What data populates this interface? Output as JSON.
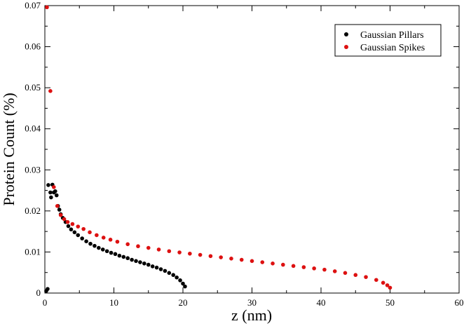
{
  "chart_data": {
    "type": "scatter",
    "title": "",
    "xlabel": "z (nm)",
    "ylabel": "Protein Count (%)",
    "xlim": [
      0,
      60
    ],
    "ylim": [
      0,
      0.07
    ],
    "xticks": [
      0,
      10,
      20,
      30,
      40,
      50,
      60
    ],
    "yticks": [
      0,
      0.01,
      0.02,
      0.03,
      0.04,
      0.05,
      0.06,
      0.07
    ],
    "xtick_labels": [
      "0",
      "10",
      "20",
      "30",
      "40",
      "50",
      "60"
    ],
    "ytick_labels": [
      "0",
      "0.01",
      "0.02",
      "0.03",
      "0.04",
      "0.05",
      "0.06",
      "0.07"
    ],
    "grid": false,
    "legend": "top-right",
    "series": [
      {
        "name": "Gaussian Pillars",
        "color": "#000000",
        "points": [
          [
            0.2,
            0.0005
          ],
          [
            0.4,
            0.001
          ],
          [
            0.5,
            0.0263
          ],
          [
            0.8,
            0.0245
          ],
          [
            0.9,
            0.0233
          ],
          [
            1.1,
            0.0264
          ],
          [
            1.3,
            0.0245
          ],
          [
            1.5,
            0.0248
          ],
          [
            1.7,
            0.0238
          ],
          [
            1.9,
            0.0212
          ],
          [
            2.1,
            0.0203
          ],
          [
            2.3,
            0.0192
          ],
          [
            2.6,
            0.0183
          ],
          [
            3.0,
            0.0173
          ],
          [
            3.4,
            0.0163
          ],
          [
            3.8,
            0.0155
          ],
          [
            4.3,
            0.0148
          ],
          [
            4.8,
            0.0141
          ],
          [
            5.4,
            0.0133
          ],
          [
            6.0,
            0.0126
          ],
          [
            6.6,
            0.012
          ],
          [
            7.2,
            0.0115
          ],
          [
            7.8,
            0.011
          ],
          [
            8.4,
            0.0106
          ],
          [
            9.0,
            0.0102
          ],
          [
            9.6,
            0.0098
          ],
          [
            10.2,
            0.0095
          ],
          [
            10.8,
            0.0091
          ],
          [
            11.4,
            0.0088
          ],
          [
            12.0,
            0.0085
          ],
          [
            12.6,
            0.0081
          ],
          [
            13.2,
            0.0078
          ],
          [
            13.8,
            0.0075
          ],
          [
            14.4,
            0.0072
          ],
          [
            15.0,
            0.0069
          ],
          [
            15.6,
            0.0065
          ],
          [
            16.2,
            0.0062
          ],
          [
            16.8,
            0.0058
          ],
          [
            17.4,
            0.0054
          ],
          [
            18.0,
            0.0049
          ],
          [
            18.6,
            0.0044
          ],
          [
            19.1,
            0.0038
          ],
          [
            19.6,
            0.0031
          ],
          [
            20.0,
            0.0023
          ],
          [
            20.3,
            0.0016
          ]
        ]
      },
      {
        "name": "Gaussian Spikes",
        "color": "#dd1111",
        "points": [
          [
            0.3,
            0.0696
          ],
          [
            0.8,
            0.0492
          ],
          [
            1.3,
            0.0258
          ],
          [
            1.8,
            0.0212
          ],
          [
            2.3,
            0.019
          ],
          [
            2.8,
            0.018
          ],
          [
            3.3,
            0.0173
          ],
          [
            4.0,
            0.0168
          ],
          [
            4.8,
            0.0162
          ],
          [
            5.6,
            0.0156
          ],
          [
            6.5,
            0.0148
          ],
          [
            7.5,
            0.0141
          ],
          [
            8.5,
            0.0135
          ],
          [
            9.5,
            0.013
          ],
          [
            10.5,
            0.0125
          ],
          [
            12.0,
            0.0119
          ],
          [
            13.5,
            0.0114
          ],
          [
            15.0,
            0.011
          ],
          [
            16.5,
            0.0106
          ],
          [
            18.0,
            0.0102
          ],
          [
            19.5,
            0.0099
          ],
          [
            21.0,
            0.0096
          ],
          [
            22.5,
            0.0093
          ],
          [
            24.0,
            0.009
          ],
          [
            25.5,
            0.0087
          ],
          [
            27.0,
            0.0084
          ],
          [
            28.5,
            0.0081
          ],
          [
            30.0,
            0.0078
          ],
          [
            31.5,
            0.0075
          ],
          [
            33.0,
            0.0072
          ],
          [
            34.5,
            0.0069
          ],
          [
            36.0,
            0.0066
          ],
          [
            37.5,
            0.0063
          ],
          [
            39.0,
            0.006
          ],
          [
            40.5,
            0.0057
          ],
          [
            42.0,
            0.0053
          ],
          [
            43.5,
            0.0049
          ],
          [
            45.0,
            0.0044
          ],
          [
            46.5,
            0.0039
          ],
          [
            48.0,
            0.0032
          ],
          [
            49.0,
            0.0025
          ],
          [
            49.6,
            0.0019
          ],
          [
            50.0,
            0.0013
          ]
        ]
      }
    ]
  }
}
